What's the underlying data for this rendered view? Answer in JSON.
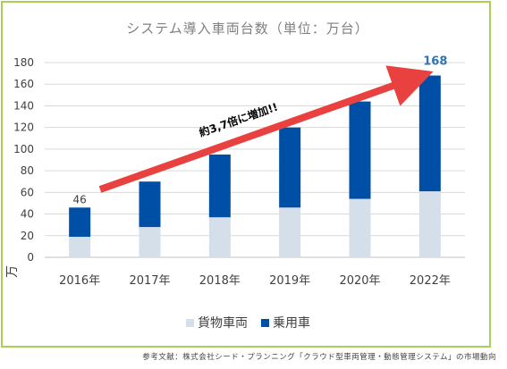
{
  "title": "システム導入車両台数（単位：万台）",
  "source": "参考文献：株式会社シード・プランニング「クラウド型車両管理・動態管理システム」の市場動向",
  "annotation": "約3,7倍に増加!!",
  "colors": {
    "freight": "#d4dfe9",
    "passenger": "#004fa6",
    "arrow": "#e8413f",
    "frame": "#a9cf54",
    "axis_text": "#404040"
  },
  "chart_data": {
    "type": "bar",
    "stacked": true,
    "categories": [
      "2016年",
      "2017年",
      "2018年",
      "2019年",
      "2020年",
      "2022年"
    ],
    "series": [
      {
        "name": "貨物車両",
        "values": [
          19,
          28,
          37,
          46,
          54,
          61
        ]
      },
      {
        "name": "乗用車",
        "values": [
          27,
          42,
          58,
          74,
          90,
          107
        ]
      }
    ],
    "totals_labels": [
      {
        "index": 0,
        "text": "46"
      },
      {
        "index": 5,
        "text": "168"
      }
    ],
    "ylabel": "万",
    "ylim": [
      0,
      180
    ],
    "yticks": [
      0,
      20,
      40,
      60,
      80,
      100,
      120,
      140,
      160,
      180
    ],
    "grid": true,
    "legend": "bottom"
  }
}
